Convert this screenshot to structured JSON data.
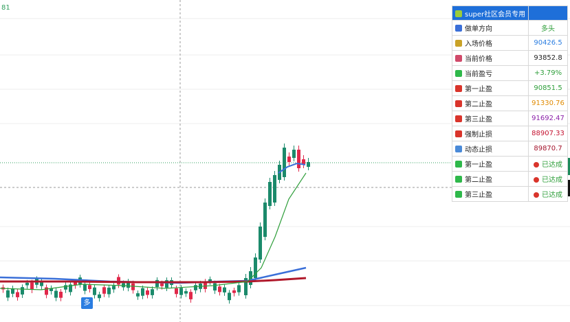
{
  "corner_label": "81",
  "badge": "多",
  "table": {
    "header": "super社区会员专用",
    "rows": [
      [
        "做单方向",
        "多头"
      ],
      [
        "入场价格",
        "90426.5"
      ],
      [
        "当前价格",
        "93852.8"
      ],
      [
        "当前盈亏",
        "+3.79%"
      ],
      [
        "第一止盈",
        "90851.5"
      ],
      [
        "第二止盈",
        "91330.76"
      ],
      [
        "第三止盈",
        "91692.47"
      ],
      [
        "强制止损",
        "88907.33"
      ],
      [
        "动态止损",
        "89870.7"
      ],
      [
        "第一止盈",
        "已达成"
      ],
      [
        "第二止盈",
        "已达成"
      ],
      [
        "第三止盈",
        "已达成"
      ]
    ]
  }
}
